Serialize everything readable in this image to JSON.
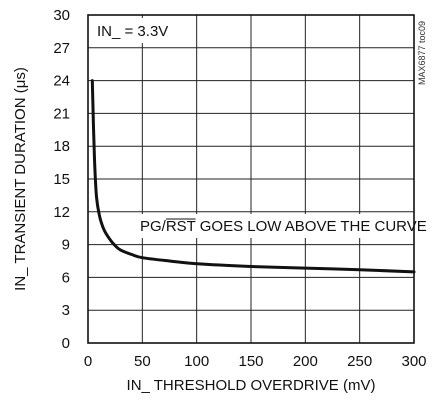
{
  "chart_data": {
    "type": "line",
    "title": "",
    "xlabel": "IN_ THRESHOLD OVERDRIVE (mV)",
    "ylabel": "IN_ TRANSIENT DURATION (μs)",
    "xlim": [
      0,
      300
    ],
    "ylim": [
      0,
      30
    ],
    "x_ticks": [
      0,
      50,
      100,
      150,
      200,
      250,
      300
    ],
    "y_ticks": [
      0,
      3,
      6,
      9,
      12,
      15,
      18,
      21,
      24,
      27,
      30
    ],
    "grid": true,
    "condition_label": "IN_ = 3.3V",
    "annotation": {
      "prefix": "PG/",
      "overlined": "RST",
      "suffix": " GOES LOW ABOVE THE CURVE"
    },
    "figure_id": "MAX6877 toc09",
    "series": [
      {
        "x": [
          4,
          5,
          6,
          7,
          8,
          10,
          12,
          15,
          20,
          25,
          30,
          40,
          50,
          75,
          100,
          150,
          200,
          250,
          300
        ],
        "y": [
          24.0,
          20.0,
          16.8,
          14.6,
          13.2,
          11.9,
          11.1,
          10.3,
          9.5,
          8.9,
          8.5,
          8.1,
          7.8,
          7.5,
          7.25,
          7.0,
          6.85,
          6.7,
          6.5
        ]
      }
    ]
  }
}
